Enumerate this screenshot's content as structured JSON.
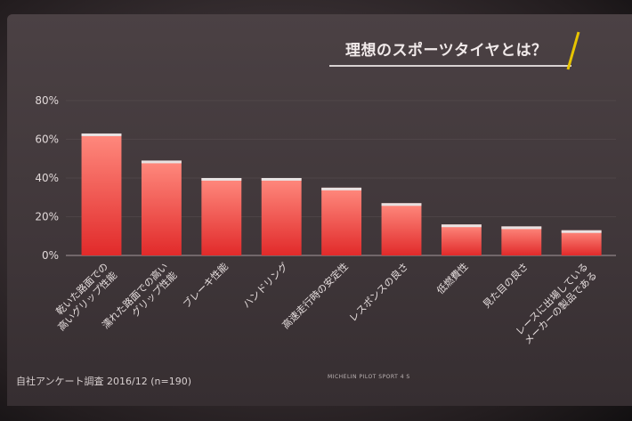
{
  "slide": {
    "title": "理想のスポーツタイヤとは？",
    "footnote": "自社アンケート調査 2016/12 (n=190)",
    "brand": "MICHELIN PILOT SPORT 4 S"
  },
  "colors": {
    "bar_top": "#e8e2e2",
    "bar_upper": "#ff8a7e",
    "bar_lower": "#e12a2a",
    "accent_yellow": "#e7c400"
  },
  "chart_data": {
    "type": "bar",
    "title": "理想のスポーツタイヤとは？",
    "categories": [
      "乾いた路面での高いグリップ性能",
      "濡れた路面での高いグリップ性能",
      "ブレーキ性能",
      "ハンドリング",
      "高速走行時の安定性",
      "レスポンスの良さ",
      "低燃費性",
      "見た目の良さ",
      "レースに出場しているメーカーの製品である"
    ],
    "label_lines": [
      [
        "乾いた路面での",
        "高いグリップ性能"
      ],
      [
        "濡れた路面での高い",
        "グリップ性能"
      ],
      [
        "ブレーキ性能"
      ],
      [
        "ハンドリング"
      ],
      [
        "高速走行時の安定性"
      ],
      [
        "レスポンスの良さ"
      ],
      [
        "低燃費性"
      ],
      [
        "見た目の良さ"
      ],
      [
        "レースに出場している",
        "メーカーの製品である"
      ]
    ],
    "values": [
      63,
      49,
      40,
      40,
      35,
      27,
      16,
      15,
      13
    ],
    "y_ticks": [
      "80%",
      "60%",
      "40%",
      "20%",
      "0%"
    ],
    "y_tick_values": [
      80,
      60,
      40,
      20,
      0
    ],
    "ylim": [
      0,
      80
    ],
    "grid": true,
    "legend": "none"
  }
}
